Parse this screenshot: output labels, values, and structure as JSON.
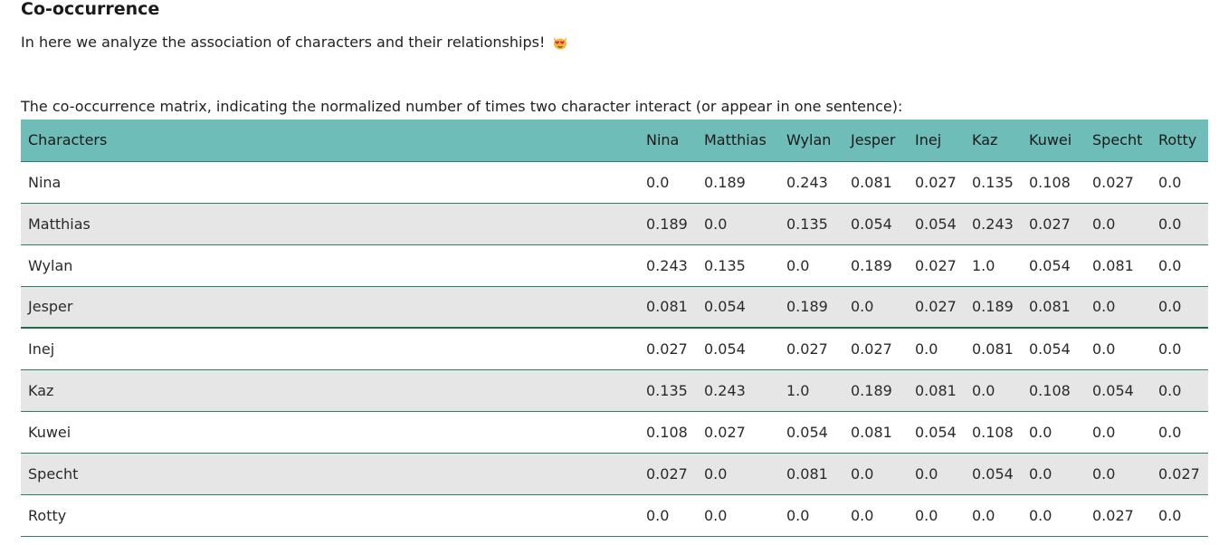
{
  "heading": "Co-occurrence",
  "intro": "In here we analyze the association of characters and their relationships!",
  "emoji": "heart-eyes-cat-emoji",
  "caption": "The co-occurrence matrix, indicating the normalized number of times two character interact (or appear in one sentence):",
  "colors": {
    "header_bg": "#6fbdb8",
    "row_alt_bg": "#e6e6e6",
    "row_border": "#2e7d5b"
  },
  "table": {
    "row_header_label": "Characters",
    "columns": [
      "Nina",
      "Matthias",
      "Wylan",
      "Jesper",
      "Inej",
      "Kaz",
      "Kuwei",
      "Specht",
      "Rotty"
    ],
    "rows": [
      {
        "name": "Nina",
        "values": [
          "0.0",
          "0.189",
          "0.243",
          "0.081",
          "0.027",
          "0.135",
          "0.108",
          "0.027",
          "0.0"
        ]
      },
      {
        "name": "Matthias",
        "values": [
          "0.189",
          "0.0",
          "0.135",
          "0.054",
          "0.054",
          "0.243",
          "0.027",
          "0.0",
          "0.0"
        ]
      },
      {
        "name": "Wylan",
        "values": [
          "0.243",
          "0.135",
          "0.0",
          "0.189",
          "0.027",
          "1.0",
          "0.054",
          "0.081",
          "0.0"
        ]
      },
      {
        "name": "Jesper",
        "values": [
          "0.081",
          "0.054",
          "0.189",
          "0.0",
          "0.027",
          "0.189",
          "0.081",
          "0.0",
          "0.0"
        ]
      },
      {
        "name": "Inej",
        "values": [
          "0.027",
          "0.054",
          "0.027",
          "0.027",
          "0.0",
          "0.081",
          "0.054",
          "0.0",
          "0.0"
        ]
      },
      {
        "name": "Kaz",
        "values": [
          "0.135",
          "0.243",
          "1.0",
          "0.189",
          "0.081",
          "0.0",
          "0.108",
          "0.054",
          "0.0"
        ]
      },
      {
        "name": "Kuwei",
        "values": [
          "0.108",
          "0.027",
          "0.054",
          "0.081",
          "0.054",
          "0.108",
          "0.0",
          "0.0",
          "0.0"
        ]
      },
      {
        "name": "Specht",
        "values": [
          "0.027",
          "0.0",
          "0.081",
          "0.0",
          "0.0",
          "0.054",
          "0.0",
          "0.0",
          "0.027"
        ]
      },
      {
        "name": "Rotty",
        "values": [
          "0.0",
          "0.0",
          "0.0",
          "0.0",
          "0.0",
          "0.0",
          "0.0",
          "0.027",
          "0.0"
        ]
      }
    ]
  }
}
